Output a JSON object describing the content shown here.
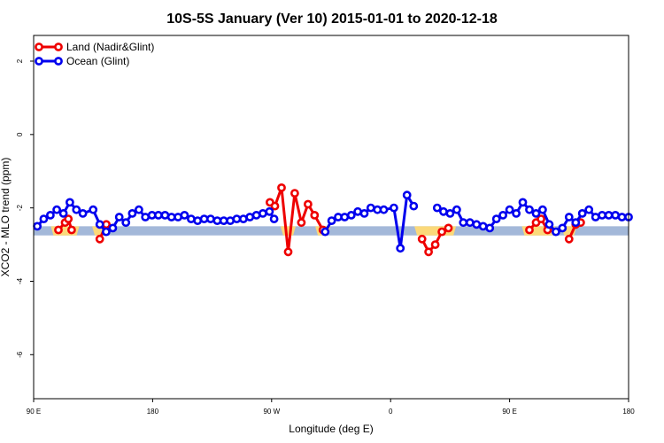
{
  "chart_data": {
    "type": "line",
    "title": "10S-5S January (Ver 10)   2015-01-01 to 2020-12-18",
    "xlabel": "Longitude (deg E)",
    "ylabel": "XCO2 - MLO trend (ppm)",
    "xlim": [
      90,
      450
    ],
    "ylim": [
      -7.2,
      2.7
    ],
    "x_ticks": [
      {
        "value": 90,
        "label": "90 E"
      },
      {
        "value": 162,
        "label": "180"
      },
      {
        "value": 234,
        "label": "90 W"
      },
      {
        "value": 306,
        "label": "0"
      },
      {
        "value": 378,
        "label": "90 E"
      },
      {
        "value": 450,
        "label": "180"
      }
    ],
    "y_ticks": [
      {
        "value": 2,
        "label": "2"
      },
      {
        "value": 0,
        "label": "0"
      },
      {
        "value": -2,
        "label": "-2"
      },
      {
        "value": -4,
        "label": "-4"
      },
      {
        "value": -6,
        "label": "-6"
      }
    ],
    "legend_position": "top-left",
    "band": {
      "ymin": -2.75,
      "ymax": -2.5,
      "color": "#a3b8d9"
    },
    "highlight_color": "#fbd97a",
    "series": [
      {
        "name": "Land (Nadir&Glint)",
        "color": "#ee0000",
        "x": [
          105,
          109,
          111,
          113,
          130,
          134,
          233,
          236,
          240,
          244,
          248,
          252,
          256,
          260,
          265,
          325,
          329,
          333,
          337,
          341,
          390,
          394,
          397,
          401,
          414,
          418,
          421
        ],
        "y": [
          -2.6,
          -2.4,
          -2.3,
          -2.6,
          -2.85,
          -2.45,
          -1.85,
          -1.95,
          -1.45,
          -3.2,
          -1.6,
          -2.4,
          -1.9,
          -2.2,
          -2.6,
          -2.85,
          -3.2,
          -3.0,
          -2.65,
          -2.55,
          -2.6,
          -2.4,
          -2.3,
          -2.6,
          -2.85,
          -2.45,
          -2.4
        ]
      },
      {
        "name": "Ocean (Glint)",
        "color": "#0000ee",
        "x": [
          92.2,
          96.1,
          100.1,
          104,
          108,
          111.9,
          115.9,
          119.8,
          126,
          130,
          133.9,
          137.9,
          141.8,
          145.8,
          149.7,
          153.7,
          157.6,
          161.6,
          165.5,
          169.5,
          173.4,
          177.4,
          181.3,
          185.3,
          189.2,
          193.2,
          197.1,
          201.1,
          205,
          209,
          212.9,
          216.9,
          220.8,
          224.8,
          228.7,
          232.7,
          235.5,
          266.4,
          270.3,
          274.3,
          278.2,
          282.2,
          286.1,
          290.1,
          294,
          298,
          301.9,
          308,
          311.9,
          315.9,
          320,
          334.2,
          338,
          342,
          346,
          350,
          354,
          358,
          362,
          366,
          370,
          374,
          378,
          382,
          386,
          390,
          394,
          398,
          402,
          406,
          410,
          414,
          418,
          422,
          426,
          430,
          434,
          438,
          442,
          446,
          450
        ],
        "y": [
          -2.5,
          -2.3,
          -2.2,
          -2.05,
          -2.15,
          -1.85,
          -2.05,
          -2.15,
          -2.05,
          -2.45,
          -2.65,
          -2.55,
          -2.25,
          -2.4,
          -2.15,
          -2.05,
          -2.25,
          -2.2,
          -2.2,
          -2.2,
          -2.25,
          -2.25,
          -2.2,
          -2.3,
          -2.35,
          -2.3,
          -2.3,
          -2.35,
          -2.35,
          -2.35,
          -2.3,
          -2.3,
          -2.25,
          -2.2,
          -2.15,
          -2.1,
          -2.3,
          -2.65,
          -2.35,
          -2.25,
          -2.25,
          -2.2,
          -2.1,
          -2.15,
          -2.0,
          -2.05,
          -2.05,
          -2.0,
          -3.1,
          -1.65,
          -1.95,
          -2.0,
          -2.1,
          -2.15,
          -2.05,
          -2.4,
          -2.4,
          -2.45,
          -2.5,
          -2.55,
          -2.3,
          -2.2,
          -2.05,
          -2.15,
          -1.85,
          -2.05,
          -2.15,
          -2.05,
          -2.45,
          -2.65,
          -2.55,
          -2.25,
          -2.4,
          -2.15,
          -2.05,
          -2.25,
          -2.2,
          -2.2,
          -2.2,
          -2.25,
          -2.25
        ]
      }
    ]
  }
}
